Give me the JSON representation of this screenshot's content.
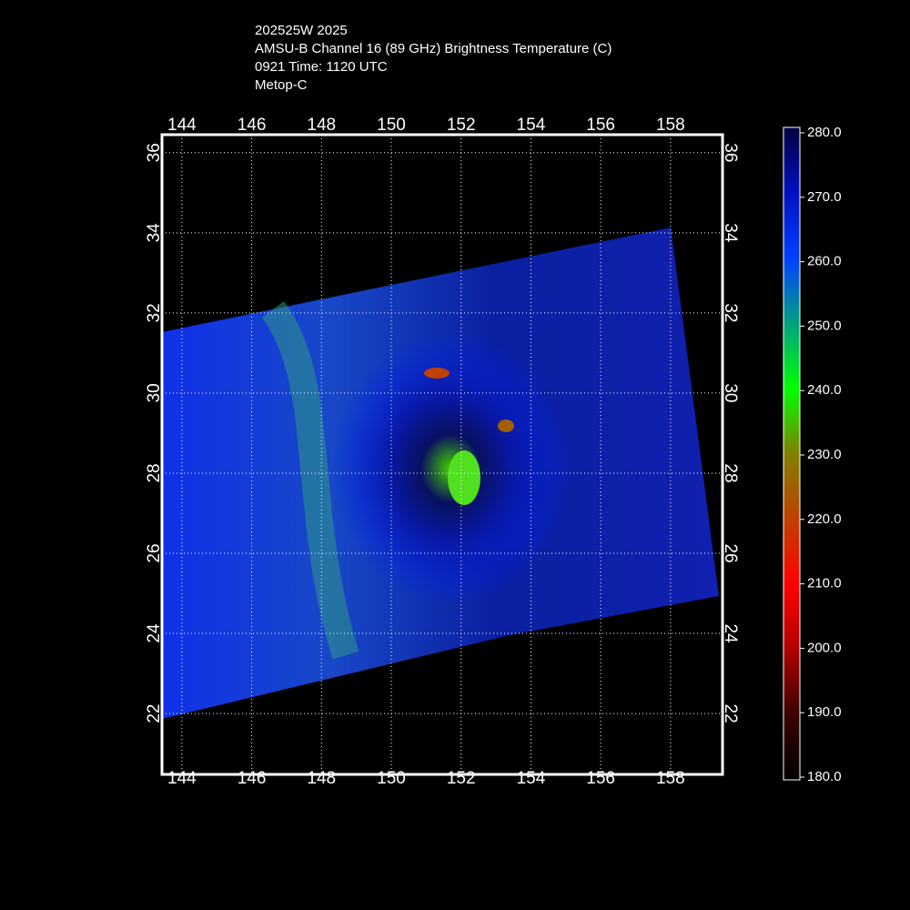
{
  "header": {
    "lines": [
      "202525W 2025",
      "AMSU-B Channel 16 (89 GHz) Brightness Temperature (C)",
      "0921 Time: 1120 UTC",
      "Metop-C"
    ]
  },
  "map": {
    "xlim": [
      143.43,
      159.49
    ],
    "ylim": [
      20.48,
      36.45
    ],
    "xticks": [
      144,
      146,
      148,
      150,
      152,
      154,
      156,
      158
    ],
    "yticks": [
      22,
      24,
      26,
      28,
      30,
      32,
      34,
      36
    ],
    "grid": true
  },
  "colorbar": {
    "lim": [
      180,
      280
    ],
    "ticks": [
      {
        "value": 280,
        "label": "280.0"
      },
      {
        "value": 270,
        "label": "270.0"
      },
      {
        "value": 260,
        "label": "260.0"
      },
      {
        "value": 250,
        "label": "250.0"
      },
      {
        "value": 240,
        "label": "240.0"
      },
      {
        "value": 230,
        "label": "230.0"
      },
      {
        "value": 220,
        "label": "220.0"
      },
      {
        "value": 210,
        "label": "210.0"
      },
      {
        "value": 200,
        "label": "200.0"
      },
      {
        "value": 190,
        "label": "190.0"
      },
      {
        "value": 180,
        "label": "180.0"
      }
    ],
    "colors": [
      "#000000",
      "#3a0000",
      "#b00000",
      "#ff0000",
      "#c04000",
      "#808000",
      "#00ff00",
      "#00a080",
      "#0040ff",
      "#0010c0",
      "#000040"
    ]
  }
}
